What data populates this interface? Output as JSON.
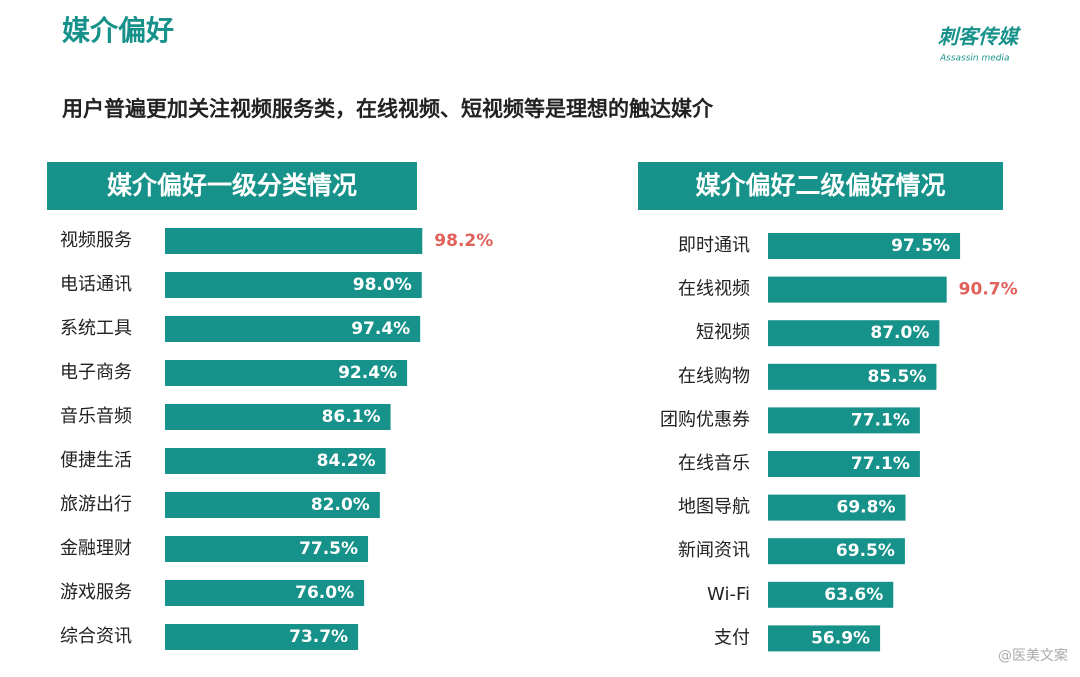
{
  "header": {
    "title": "媒介偏好",
    "subtitle": "用户普遍更加关注视频服务类，在线视频、短视频等是理想的触达媒介",
    "logo": "刺客传媒",
    "logo_sub": "Assassin media"
  },
  "watermark": "@医美文案",
  "chart_data": [
    {
      "type": "hbar",
      "title": "媒介偏好一级分类情况",
      "color": "#17928a",
      "categories": [
        "视频服务",
        "电话通讯",
        "系统工具",
        "电子商务",
        "音乐音频",
        "便捷生活",
        "旅游出行",
        "金融理财",
        "游戏服务",
        "综合资讯"
      ],
      "values": [
        98.2,
        98.0,
        97.4,
        92.4,
        86.1,
        84.2,
        82.0,
        77.5,
        76.0,
        73.7
      ],
      "value_labels": [
        "98.2%",
        "98.0%",
        "97.4%",
        "92.4%",
        "86.1%",
        "84.2%",
        "82.0%",
        "77.5%",
        "76.0%",
        "73.7%"
      ],
      "value_label_colors": [
        "#e0605a",
        "#ffffff",
        "#ffffff",
        "#ffffff",
        "#ffffff",
        "#ffffff",
        "#ffffff",
        "#ffffff",
        "#ffffff",
        "#ffffff"
      ]
    },
    {
      "type": "hbar",
      "title": "媒介偏好二级偏好情况",
      "color": "#17928a",
      "categories": [
        "即时通讯",
        "在线视频",
        "短视频",
        "在线购物",
        "团购优惠券",
        "在线音乐",
        "地图导航",
        "新闻资讯",
        "Wi-Fi",
        "支付"
      ],
      "values": [
        97.5,
        90.7,
        87.0,
        85.5,
        77.1,
        77.1,
        69.8,
        69.5,
        63.6,
        56.9
      ],
      "value_labels": [
        "97.5%",
        "90.7%",
        "87.0%",
        "85.5%",
        "77.1%",
        "77.1%",
        "69.8%",
        "69.5%",
        "63.6%",
        "56.9%"
      ],
      "value_label_colors": [
        "#ffffff",
        "#e0605a",
        "#ffffff",
        "#ffffff",
        "#ffffff",
        "#ffffff",
        "#ffffff",
        "#ffffff",
        "#ffffff",
        "#ffffff"
      ]
    }
  ]
}
